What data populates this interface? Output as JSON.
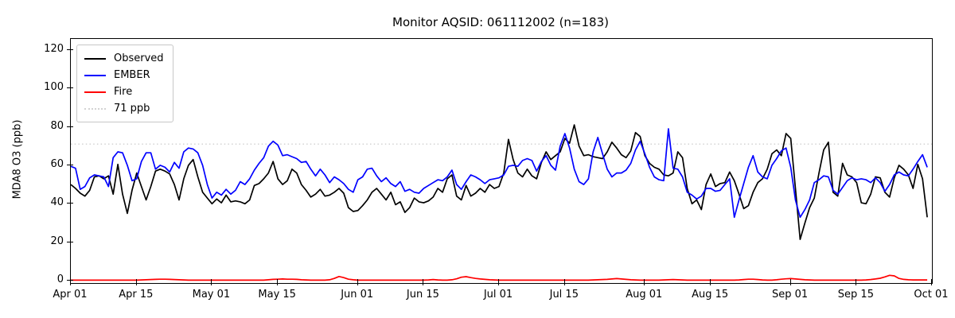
{
  "chart_data": {
    "type": "line",
    "title": "Monitor AQSID: 061112002 (n=183)",
    "ylabel": "MDA8 O3 (ppb)",
    "n": 183,
    "x_start": "Apr 01",
    "x_end": "Oct 01",
    "xlim_days": [
      0,
      183
    ],
    "ylim": [
      -1.2,
      125.7
    ],
    "grid": false,
    "legend_position": "upper-left",
    "y_ticks": [
      0,
      20,
      40,
      60,
      80,
      100,
      120
    ],
    "x_tick_labels": [
      "Apr 01",
      "Apr 15",
      "May 01",
      "May 15",
      "Jun 01",
      "Jun 15",
      "Jul 01",
      "Jul 15",
      "Aug 01",
      "Aug 15",
      "Sep 01",
      "Sep 15",
      "Oct 01"
    ],
    "x_tick_days": [
      0,
      14,
      30,
      44,
      61,
      75,
      91,
      105,
      122,
      136,
      153,
      167,
      183
    ],
    "threshold": {
      "value": 71,
      "label": "71 ppb",
      "color": "#d3d3d3",
      "style": "dotted"
    },
    "series": [
      {
        "name": "Observed",
        "color": "#000000",
        "values": [
          50,
          48,
          45.5,
          44,
          47,
          54,
          54.5,
          53,
          54.5,
          45,
          60.5,
          45,
          35,
          47,
          56,
          49,
          42,
          49,
          57,
          58,
          57,
          55.5,
          50,
          42,
          53,
          60,
          63,
          54,
          46,
          43,
          40,
          42.5,
          40.5,
          44.5,
          41,
          41.5,
          41,
          40,
          42,
          49.5,
          50.5,
          53,
          56,
          62,
          53,
          50,
          52,
          58,
          56,
          50,
          47,
          43.5,
          45,
          47.5,
          44,
          44.5,
          46,
          48,
          45.5,
          38,
          36,
          36.5,
          39,
          42,
          46,
          48,
          45,
          42,
          46,
          39.5,
          41,
          35.5,
          38,
          43,
          41,
          40.5,
          41.5,
          43.5,
          48,
          46,
          53,
          55,
          44,
          42,
          49.5,
          44,
          45.5,
          48,
          46,
          50,
          48,
          49,
          56,
          73.5,
          63,
          56,
          54,
          58,
          54.5,
          53,
          61.5,
          67,
          63,
          65,
          67,
          74,
          71.5,
          81,
          70,
          65,
          65.5,
          64.5,
          64,
          63.5,
          67,
          72,
          69,
          65.5,
          64,
          67.5,
          77,
          75,
          65,
          61,
          59,
          58,
          55,
          54.5,
          56,
          67,
          64,
          48,
          40,
          42,
          37,
          50,
          55.5,
          49,
          50.5,
          51,
          56.5,
          52,
          45,
          37.5,
          39,
          46,
          51,
          53,
          58,
          66,
          68,
          65,
          76.5,
          74,
          48,
          21.5,
          30,
          38,
          43,
          56,
          68,
          72,
          46,
          44,
          61,
          55,
          54,
          51,
          40.5,
          40,
          45,
          54,
          53.5,
          46,
          43.5,
          53.5,
          60,
          58,
          55,
          48,
          60.5,
          53,
          33
        ]
      },
      {
        "name": "EMBER",
        "color": "#0000ff",
        "values": [
          59.5,
          58.5,
          47.5,
          49,
          53.5,
          55,
          54.5,
          54,
          49,
          64,
          67,
          66.5,
          60,
          52,
          53,
          62,
          66.5,
          66.5,
          58,
          60,
          59,
          56.5,
          61.5,
          58.5,
          67,
          69,
          68.5,
          66.5,
          60,
          50,
          43,
          46,
          44.5,
          47.5,
          45,
          47,
          51.5,
          50,
          53,
          57.5,
          61,
          64,
          70,
          72.5,
          70.5,
          65,
          65.5,
          64.5,
          63.5,
          61.5,
          62,
          58,
          54.5,
          58,
          55,
          51,
          54,
          52.5,
          50.5,
          47.5,
          46,
          52.5,
          54,
          58,
          58.5,
          54.5,
          51.5,
          53.5,
          50.5,
          49,
          51.5,
          46.5,
          47.5,
          46,
          45.5,
          48,
          49.5,
          51,
          52.5,
          52,
          54,
          57.5,
          50,
          47.5,
          51.5,
          55,
          54,
          52.5,
          50.5,
          52.5,
          53,
          53.5,
          55,
          59.5,
          60,
          59.5,
          62.5,
          63.5,
          62.5,
          57,
          62,
          65,
          60,
          57.5,
          70,
          76.5,
          69,
          58,
          51.5,
          50,
          53,
          67,
          74.5,
          66,
          58,
          54,
          56,
          56,
          57.5,
          61,
          68,
          72.5,
          66,
          59,
          54,
          52.5,
          52,
          79,
          58.5,
          58,
          54,
          46,
          44.5,
          42.5,
          44,
          48,
          48,
          46.5,
          47,
          50,
          53,
          33,
          42,
          50.5,
          59,
          65,
          56.5,
          54,
          53,
          60,
          63.5,
          67.5,
          69,
          59,
          42,
          33,
          37,
          42,
          51,
          52.5,
          54.5,
          54,
          47,
          45,
          48.5,
          52,
          53.5,
          52.5,
          53,
          52.5,
          51,
          53.5,
          51,
          46.5,
          50,
          55,
          56.5,
          55,
          54.5,
          58,
          62,
          65.5,
          59
        ]
      },
      {
        "name": "Fire",
        "color": "#ff0000",
        "values": [
          0.3,
          0.3,
          0.3,
          0.3,
          0.3,
          0.3,
          0.3,
          0.3,
          0.3,
          0.3,
          0.3,
          0.3,
          0.3,
          0.3,
          0.3,
          0.4,
          0.5,
          0.6,
          0.7,
          0.8,
          0.8,
          0.7,
          0.6,
          0.5,
          0.4,
          0.3,
          0.3,
          0.3,
          0.3,
          0.3,
          0.3,
          0.3,
          0.3,
          0.3,
          0.3,
          0.3,
          0.3,
          0.3,
          0.3,
          0.3,
          0.3,
          0.3,
          0.5,
          0.7,
          0.8,
          0.9,
          0.8,
          0.8,
          0.7,
          0.5,
          0.4,
          0.3,
          0.3,
          0.3,
          0.3,
          0.5,
          1.2,
          2.2,
          1.6,
          0.8,
          0.5,
          0.3,
          0.3,
          0.3,
          0.3,
          0.3,
          0.3,
          0.3,
          0.3,
          0.3,
          0.3,
          0.3,
          0.3,
          0.3,
          0.3,
          0.3,
          0.4,
          0.6,
          0.4,
          0.3,
          0.3,
          0.5,
          1.0,
          1.8,
          2.1,
          1.6,
          1.2,
          0.9,
          0.7,
          0.5,
          0.4,
          0.3,
          0.3,
          0.3,
          0.3,
          0.3,
          0.3,
          0.3,
          0.3,
          0.3,
          0.3,
          0.3,
          0.3,
          0.3,
          0.3,
          0.3,
          0.3,
          0.3,
          0.3,
          0.3,
          0.3,
          0.4,
          0.5,
          0.6,
          0.7,
          0.9,
          1.1,
          0.9,
          0.7,
          0.5,
          0.4,
          0.3,
          0.3,
          0.3,
          0.3,
          0.3,
          0.4,
          0.5,
          0.6,
          0.5,
          0.4,
          0.3,
          0.3,
          0.3,
          0.3,
          0.3,
          0.3,
          0.3,
          0.3,
          0.3,
          0.3,
          0.3,
          0.4,
          0.6,
          0.8,
          0.8,
          0.6,
          0.4,
          0.3,
          0.3,
          0.5,
          0.8,
          1.0,
          1.1,
          0.9,
          0.7,
          0.5,
          0.4,
          0.3,
          0.3,
          0.3,
          0.3,
          0.3,
          0.3,
          0.3,
          0.3,
          0.3,
          0.3,
          0.3,
          0.4,
          0.6,
          0.9,
          1.3,
          2.0,
          2.8,
          2.5,
          1.2,
          0.7,
          0.5,
          0.4,
          0.4,
          0.4,
          0.4
        ]
      }
    ]
  }
}
